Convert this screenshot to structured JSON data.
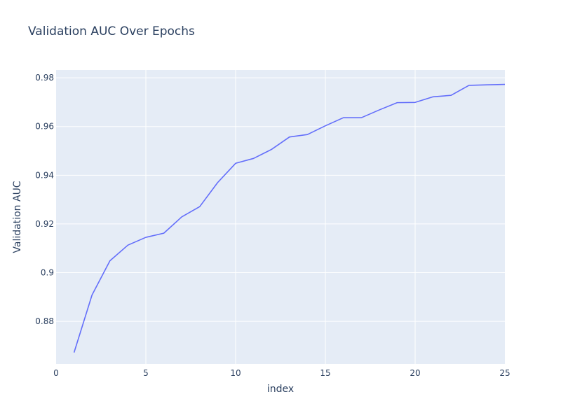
{
  "chart_data": {
    "type": "line",
    "title": "Validation AUC Over Epochs",
    "xlabel": "index",
    "ylabel": "Validation AUC",
    "xlim": [
      0,
      25
    ],
    "ylim": [
      0.8625,
      0.9832
    ],
    "xticks": [
      {
        "value": 0,
        "label": "0"
      },
      {
        "value": 5,
        "label": "5"
      },
      {
        "value": 10,
        "label": "10"
      },
      {
        "value": 15,
        "label": "15"
      },
      {
        "value": 20,
        "label": "20"
      },
      {
        "value": 25,
        "label": "25"
      }
    ],
    "yticks": [
      {
        "value": 0.88,
        "label": "0.88"
      },
      {
        "value": 0.9,
        "label": "0.9"
      },
      {
        "value": 0.92,
        "label": "0.92"
      },
      {
        "value": 0.94,
        "label": "0.94"
      },
      {
        "value": 0.96,
        "label": "0.96"
      },
      {
        "value": 0.98,
        "label": "0.98"
      }
    ],
    "grid": true,
    "series": [
      {
        "color": "#636efa",
        "x": [
          1,
          2,
          3,
          4,
          5,
          6,
          7,
          8,
          9,
          10,
          11,
          12,
          13,
          14,
          15,
          16,
          17,
          18,
          19,
          20,
          21,
          22,
          23,
          24,
          25
        ],
        "y": [
          0.8672,
          0.8908,
          0.9049,
          0.9113,
          0.9145,
          0.9162,
          0.9229,
          0.9271,
          0.937,
          0.9449,
          0.9469,
          0.9506,
          0.9557,
          0.9567,
          0.9603,
          0.9636,
          0.9636,
          0.9668,
          0.9698,
          0.9699,
          0.9722,
          0.9728,
          0.9769,
          0.9771,
          0.9773
        ]
      }
    ]
  },
  "colors": {
    "plot_bg": "#e5ecf6",
    "grid": "#ffffff",
    "text": "#2a3f5f",
    "line": "#636efa"
  }
}
